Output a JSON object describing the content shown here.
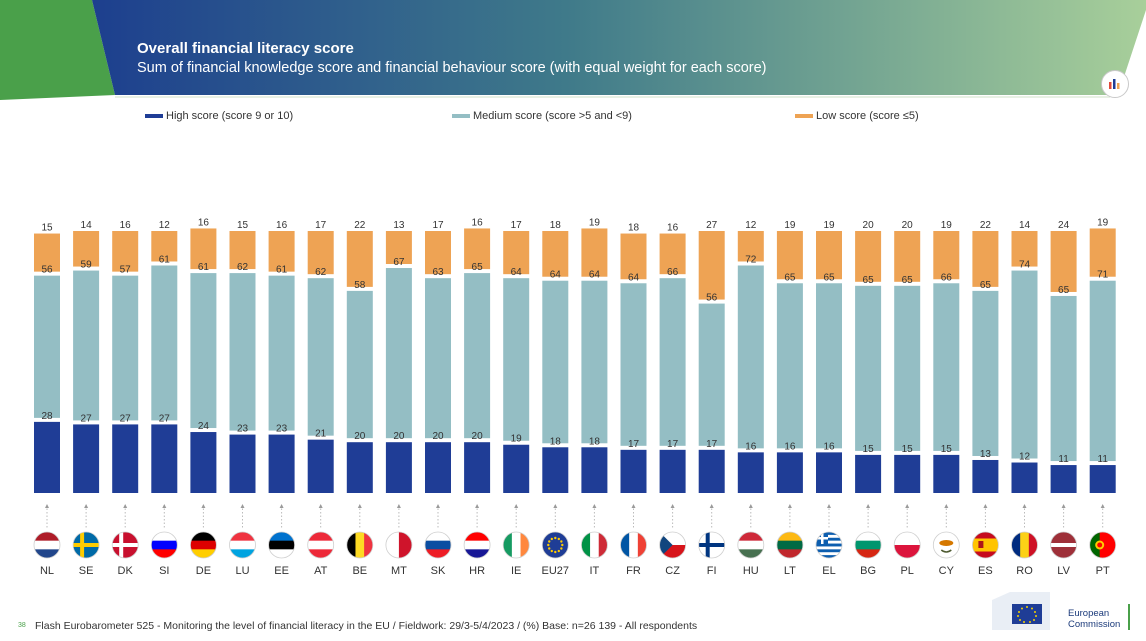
{
  "header": {
    "title": "Overall financial literacy score",
    "subtitle": "Sum of financial knowledge score and financial behaviour score (with equal weight for each score)"
  },
  "colors": {
    "high": "#1f3d96",
    "medium": "#94bec4",
    "low": "#eea354",
    "green": "#4aa04a"
  },
  "chart_data": {
    "type": "bar",
    "stacked": true,
    "categories": [
      "NL",
      "SE",
      "DK",
      "SI",
      "DE",
      "LU",
      "EE",
      "AT",
      "BE",
      "MT",
      "SK",
      "HR",
      "IE",
      "EU27",
      "IT",
      "FR",
      "CZ",
      "FI",
      "HU",
      "LT",
      "EL",
      "BG",
      "PL",
      "CY",
      "ES",
      "RO",
      "LV",
      "PT"
    ],
    "series": [
      {
        "name": "High score (score 9 or 10)",
        "values": [
          28,
          27,
          27,
          27,
          24,
          23,
          23,
          21,
          20,
          20,
          20,
          20,
          19,
          18,
          18,
          17,
          17,
          17,
          16,
          16,
          16,
          15,
          15,
          15,
          13,
          12,
          11,
          11
        ]
      },
      {
        "name": "Medium score (score >5 and <9)",
        "values": [
          56,
          59,
          57,
          61,
          61,
          62,
          61,
          62,
          58,
          67,
          63,
          65,
          64,
          64,
          64,
          64,
          66,
          56,
          72,
          65,
          65,
          65,
          65,
          66,
          65,
          74,
          65,
          71
        ]
      },
      {
        "name": "Low score (score ≤5)",
        "values": [
          15,
          14,
          16,
          12,
          16,
          15,
          16,
          17,
          22,
          13,
          17,
          16,
          17,
          18,
          19,
          18,
          16,
          27,
          12,
          19,
          19,
          20,
          20,
          19,
          22,
          14,
          24,
          19
        ]
      }
    ],
    "ylim": [
      0,
      100
    ],
    "legend_position": "top"
  },
  "footer": {
    "page": "38",
    "text": "Flash Eurobarometer 525 - Monitoring the level of financial literacy in the EU   /   Fieldwork: 29/3-5/4/2023   /   (%) Base: n=26 139 - All respondents",
    "org": "European\nCommission"
  }
}
